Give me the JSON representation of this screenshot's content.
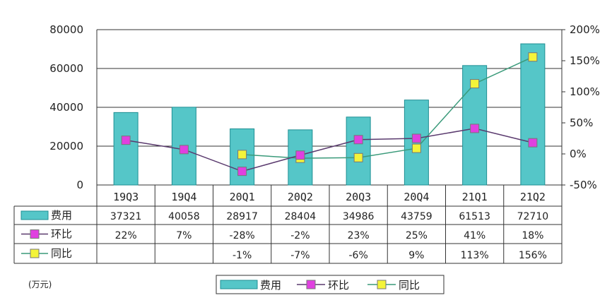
{
  "chart_data": {
    "type": "bar",
    "categories": [
      "19Q3",
      "19Q4",
      "20Q1",
      "20Q2",
      "20Q3",
      "20Q4",
      "21Q1",
      "21Q2"
    ],
    "series": [
      {
        "name": "费用",
        "kind": "bar",
        "axis": "left",
        "values": [
          37321,
          40058,
          28917,
          28404,
          34986,
          43759,
          61513,
          72710
        ],
        "color": "#55c6c8",
        "edge": "#1f8f93"
      },
      {
        "name": "环比",
        "kind": "line",
        "axis": "right",
        "values": [
          22,
          7,
          -28,
          -2,
          23,
          25,
          41,
          18
        ],
        "labels": [
          "22%",
          "7%",
          "-28%",
          "-2%",
          "23%",
          "25%",
          "41%",
          "18%"
        ],
        "color": "#e040e0",
        "line_color": "#5a3a6e"
      },
      {
        "name": "同比",
        "kind": "line",
        "axis": "right",
        "values": [
          null,
          null,
          -1,
          -7,
          -6,
          9,
          113,
          156
        ],
        "labels": [
          "",
          "",
          "-1%",
          "-7%",
          "-6%",
          "9%",
          "113%",
          "156%"
        ],
        "color": "#f4f43a",
        "line_color": "#3a9a7a"
      }
    ],
    "left_axis": {
      "ylim": [
        0,
        80000
      ],
      "ticks": [
        "0",
        "20000",
        "40000",
        "60000",
        "80000"
      ]
    },
    "right_axis": {
      "ylim": [
        -50,
        200
      ],
      "ticks": [
        "-50%",
        "0%",
        "50%",
        "100%",
        "150%",
        "200%"
      ]
    },
    "unit_label": "(万元)",
    "grid": "horizontal",
    "legend": "bottom-center",
    "data_table": true
  }
}
